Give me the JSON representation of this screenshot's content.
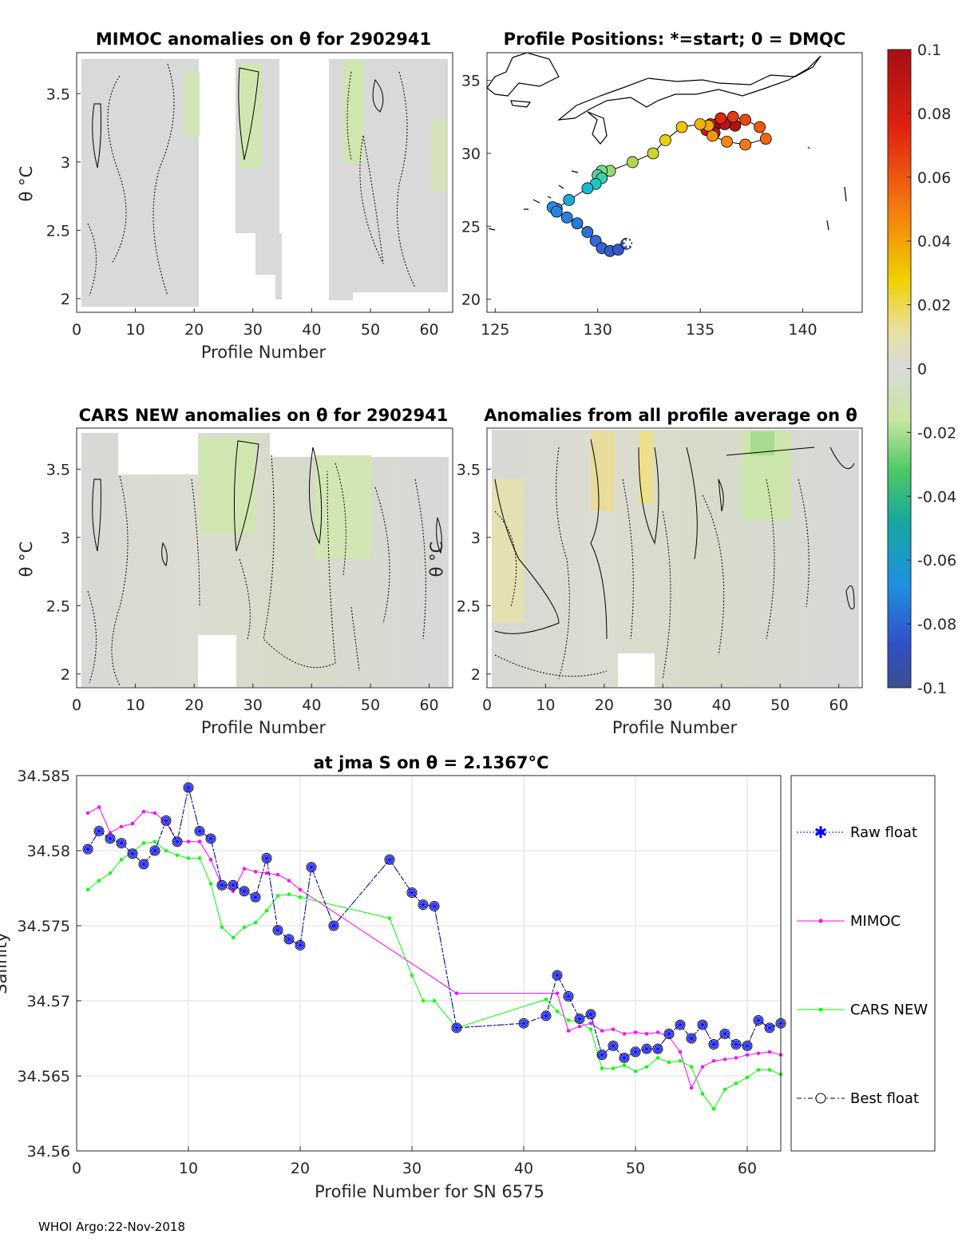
{
  "panels": {
    "mimoc": {
      "title": "MIMOC anomalies on θ  for 2902941",
      "xlabel": "Profile Number",
      "ylabel": "θ °C",
      "xticks": [
        "0",
        "10",
        "20",
        "30",
        "40",
        "50",
        "60"
      ],
      "yticks": [
        "2",
        "2.5",
        "3",
        "3.5"
      ]
    },
    "positions": {
      "title": "Profile Positions: *=start; 0 = DMQC",
      "xticks": [
        "125",
        "130",
        "135",
        "140"
      ],
      "yticks": [
        "20",
        "25",
        "30",
        "35"
      ],
      "track": [
        [
          131.4,
          23.8
        ],
        [
          131.0,
          23.4
        ],
        [
          130.6,
          23.3
        ],
        [
          130.2,
          23.5
        ],
        [
          129.9,
          24.0
        ],
        [
          129.5,
          24.6
        ],
        [
          129.0,
          25.2
        ],
        [
          128.5,
          25.6
        ],
        [
          128.0,
          26.0
        ],
        [
          127.8,
          26.3
        ],
        [
          128.0,
          26.2
        ],
        [
          128.6,
          26.8
        ],
        [
          129.5,
          27.6
        ],
        [
          129.9,
          27.9
        ],
        [
          130.2,
          28.3
        ],
        [
          130.0,
          28.5
        ],
        [
          130.2,
          28.8
        ],
        [
          130.6,
          28.8
        ],
        [
          131.7,
          29.4
        ],
        [
          132.7,
          30.0
        ],
        [
          133.3,
          30.9
        ],
        [
          134.1,
          31.8
        ],
        [
          135.0,
          32.0
        ],
        [
          135.4,
          31.9
        ],
        [
          135.6,
          31.2
        ],
        [
          136.3,
          30.8
        ],
        [
          137.2,
          30.6
        ],
        [
          138.2,
          31.0
        ],
        [
          137.9,
          31.8
        ],
        [
          137.2,
          32.3
        ],
        [
          136.6,
          32.5
        ],
        [
          136.0,
          32.4
        ],
        [
          135.5,
          32.0
        ],
        [
          135.3,
          31.6
        ],
        [
          135.7,
          31.4
        ],
        [
          136.2,
          32.0
        ],
        [
          136.7,
          31.9
        ],
        [
          135.9,
          32.1
        ]
      ]
    },
    "cars": {
      "title": "CARS NEW anomalies on θ for 2902941",
      "xlabel": "Profile Number",
      "ylabel": "θ °C",
      "xticks": [
        "0",
        "10",
        "20",
        "30",
        "40",
        "50",
        "60"
      ],
      "yticks": [
        "2",
        "2.5",
        "3",
        "3.5"
      ]
    },
    "allavg": {
      "title": "Anomalies from all profile average on θ",
      "xlabel": "Profile Number",
      "ylabel": "θ °C",
      "xticks": [
        "0",
        "10",
        "20",
        "30",
        "40",
        "50",
        "60"
      ],
      "yticks": [
        "2",
        "2.5",
        "3",
        "3.5"
      ]
    },
    "colorbar": {
      "ticks": [
        "0.1",
        "0.08",
        "0.06",
        "0.04",
        "0.02",
        "0",
        "-0.02",
        "-0.04",
        "-0.06",
        "-0.08",
        "-0.1"
      ]
    }
  },
  "chart_data": {
    "type": "line",
    "title": "at jma S on θ = 2.1367°C",
    "xlabel": "Profile Number for SN 6575",
    "ylabel": "Salinity",
    "xlim": [
      0,
      63
    ],
    "ylim": [
      34.56,
      34.585
    ],
    "xticks": [
      "0",
      "10",
      "20",
      "30",
      "40",
      "50",
      "60"
    ],
    "yticks": [
      "34.56",
      "34.565",
      "34.57",
      "34.575",
      "34.58",
      "34.585"
    ],
    "series": [
      {
        "name": "Raw float",
        "color": "#0000ff",
        "x": [
          1,
          2,
          3,
          4,
          5,
          6,
          7,
          8,
          9,
          10,
          11,
          12,
          13,
          14,
          15,
          16,
          17,
          18,
          19,
          20,
          21,
          23,
          28,
          30,
          31,
          32,
          34,
          40,
          42,
          43,
          44,
          45,
          46,
          47,
          48,
          49,
          50,
          51,
          52,
          53,
          54,
          55,
          56,
          57,
          58,
          59,
          60,
          61,
          62,
          63
        ],
        "y": [
          34.5801,
          34.5813,
          34.5808,
          34.5805,
          34.5798,
          34.5791,
          34.58,
          34.582,
          34.5806,
          34.5842,
          34.5813,
          34.5808,
          34.5777,
          34.5777,
          34.5773,
          34.5769,
          34.5795,
          34.5747,
          34.5741,
          34.5737,
          34.5789,
          34.575,
          34.5794,
          34.5772,
          34.5764,
          34.5763,
          34.5682,
          34.5685,
          34.569,
          34.5717,
          34.5703,
          34.5688,
          34.5691,
          34.5664,
          34.567,
          34.5662,
          34.5666,
          34.5668,
          34.5668,
          34.5678,
          34.5684,
          34.5675,
          34.5684,
          34.5671,
          34.5678,
          34.5671,
          34.567,
          34.5687,
          34.5682,
          34.5685
        ]
      },
      {
        "name": "MIMOC",
        "color": "#ff00ff",
        "x": [
          1,
          2,
          3,
          4,
          5,
          6,
          7,
          8,
          9,
          10,
          11,
          12,
          13,
          14,
          15,
          16,
          17,
          18,
          19,
          20,
          34,
          43,
          44,
          45,
          46,
          47,
          48,
          49,
          50,
          51,
          52,
          53,
          54,
          55,
          56,
          57,
          58,
          59,
          60,
          61,
          62,
          63
        ],
        "y": [
          34.5825,
          34.5829,
          34.5812,
          34.5816,
          34.5818,
          34.5826,
          34.5825,
          34.5819,
          34.5806,
          34.5806,
          34.5806,
          34.5794,
          34.5777,
          34.5773,
          34.5788,
          34.5786,
          34.5785,
          34.5784,
          34.578,
          34.5774,
          34.5705,
          34.5705,
          34.568,
          34.5683,
          34.5685,
          34.568,
          34.5681,
          34.5678,
          34.5679,
          34.5678,
          34.5679,
          34.5676,
          34.5666,
          34.5642,
          34.5656,
          34.566,
          34.5661,
          34.5662,
          34.5664,
          34.5665,
          34.5666,
          34.5664
        ]
      },
      {
        "name": "CARS NEW",
        "color": "#00ff00",
        "x": [
          1,
          2,
          3,
          4,
          5,
          6,
          7,
          8,
          9,
          10,
          11,
          12,
          13,
          14,
          15,
          16,
          17,
          18,
          19,
          20,
          28,
          30,
          31,
          32,
          34,
          42,
          43,
          44,
          45,
          46,
          47,
          48,
          49,
          50,
          51,
          52,
          53,
          54,
          55,
          56,
          57,
          58,
          59,
          60,
          61,
          62,
          63
        ],
        "y": [
          34.5774,
          34.578,
          34.5785,
          34.5794,
          34.5799,
          34.5805,
          34.5806,
          34.58,
          34.5797,
          34.5795,
          34.5795,
          34.5778,
          34.5749,
          34.5742,
          34.5749,
          34.5752,
          34.576,
          34.577,
          34.5771,
          34.5769,
          34.5755,
          34.5717,
          34.57,
          34.57,
          34.5682,
          34.5701,
          34.5693,
          34.5687,
          34.5686,
          34.5681,
          34.5655,
          34.5655,
          34.5657,
          34.5653,
          34.5656,
          34.5662,
          34.5659,
          34.566,
          34.5656,
          34.5638,
          34.5628,
          34.5641,
          34.5645,
          34.5649,
          34.5654,
          34.5654,
          34.5651
        ]
      },
      {
        "name": "Best float",
        "color": "#000000",
        "x": [
          1,
          2,
          3,
          4,
          5,
          6,
          7,
          8,
          9,
          10,
          11,
          12,
          13,
          14,
          15,
          16,
          17,
          18,
          19,
          20,
          21,
          23,
          28,
          30,
          31,
          32,
          34,
          40,
          42,
          43,
          44,
          45,
          46,
          47,
          48,
          49,
          50,
          51,
          52,
          53,
          54,
          55,
          56,
          57,
          58,
          59,
          60,
          61,
          62,
          63
        ],
        "y": [
          34.5801,
          34.5813,
          34.5808,
          34.5805,
          34.5798,
          34.5791,
          34.58,
          34.582,
          34.5806,
          34.5842,
          34.5813,
          34.5808,
          34.5777,
          34.5777,
          34.5773,
          34.5769,
          34.5795,
          34.5747,
          34.5741,
          34.5737,
          34.5789,
          34.575,
          34.5794,
          34.5772,
          34.5764,
          34.5763,
          34.5682,
          34.5685,
          34.569,
          34.5717,
          34.5703,
          34.5688,
          34.5691,
          34.5664,
          34.567,
          34.5662,
          34.5666,
          34.5668,
          34.5668,
          34.5678,
          34.5684,
          34.5675,
          34.5684,
          34.5671,
          34.5678,
          34.5671,
          34.567,
          34.5687,
          34.5682,
          34.5685
        ]
      }
    ]
  },
  "legend": {
    "raw": "Raw float",
    "mimoc": "MIMOC",
    "cars": "CARS NEW",
    "best": "Best float"
  },
  "footer": "WHOI Argo:22-Nov-2018"
}
